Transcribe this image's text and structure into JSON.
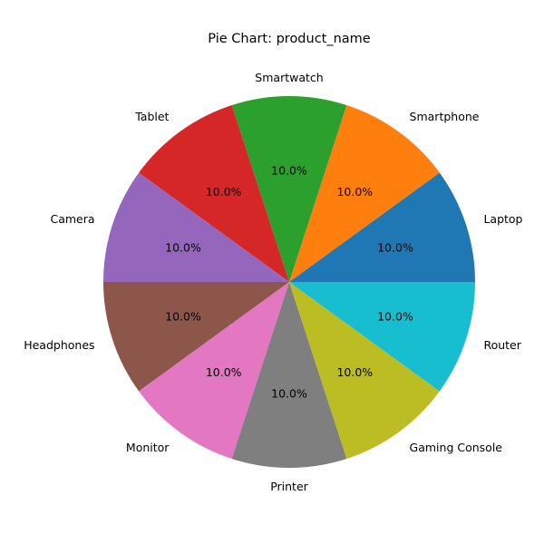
{
  "chart_data": {
    "type": "pie",
    "title": "Pie Chart: product_name",
    "categories": [
      "Laptop",
      "Smartphone",
      "Smartwatch",
      "Tablet",
      "Camera",
      "Headphones",
      "Monitor",
      "Printer",
      "Gaming Console",
      "Router"
    ],
    "values": [
      10,
      10,
      10,
      10,
      10,
      10,
      10,
      10,
      10,
      10
    ],
    "percent_labels": [
      "10.0%",
      "10.0%",
      "10.0%",
      "10.0%",
      "10.0%",
      "10.0%",
      "10.0%",
      "10.0%",
      "10.0%",
      "10.0%"
    ],
    "colors": [
      "#1f77b4",
      "#ff7f0e",
      "#2ca02c",
      "#d62728",
      "#9467bd",
      "#8c564b",
      "#e377c2",
      "#7f7f7f",
      "#bcbd22",
      "#17becf"
    ],
    "start_angle_deg": 0,
    "direction": "counterclockwise",
    "legend": "none"
  }
}
